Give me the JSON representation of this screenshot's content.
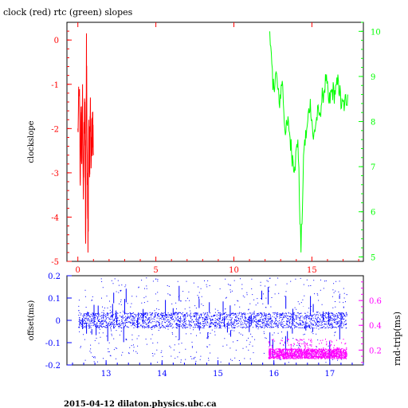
{
  "title": "clock (red) rtc (green) slopes",
  "footer": "2015-04-12  dilaton.physics.ubc.ca",
  "colors": {
    "clock": "#ff0000",
    "rtc": "#00ff00",
    "offset": "#0000ff",
    "rnd_trip": "#ff00ff",
    "frame": "#000000"
  },
  "chart_data": [
    {
      "type": "line",
      "title": "clock (red) rtc (green) slopes",
      "ylabel": "clockslope",
      "xlim": [
        -0.7,
        18.3
      ],
      "ylim": [
        -5,
        0.4
      ],
      "y2lim": [
        4.9,
        10.2
      ],
      "x_ticks": [
        0,
        5,
        10,
        15
      ],
      "y_ticks": [
        0,
        -1,
        -2,
        -3,
        -4,
        -5
      ],
      "y2_ticks": [
        10,
        9,
        8,
        7,
        6,
        5
      ],
      "series": [
        {
          "color": "#ff0000",
          "axis": "left",
          "x": [
            0.0,
            0.1,
            0.15,
            0.2,
            0.25,
            0.3,
            0.35,
            0.4,
            0.45,
            0.5,
            0.55,
            0.6,
            0.65,
            0.7,
            0.75,
            0.8,
            0.85,
            0.9,
            0.95,
            1.0
          ],
          "y": [
            -2.0,
            -1.2,
            -3.2,
            -1.7,
            -2.8,
            -1.0,
            -3.6,
            -2.0,
            -1.4,
            -4.6,
            0.15,
            -2.6,
            -4.8,
            -1.8,
            -3.1,
            -1.3,
            -2.9,
            -2.3,
            -1.9,
            -2.6
          ]
        },
        {
          "color": "#00ff00",
          "axis": "right",
          "x": [
            12.3,
            12.5,
            12.7,
            12.9,
            13.1,
            13.3,
            13.5,
            13.7,
            13.9,
            14.1,
            14.3,
            14.5,
            14.7,
            14.9,
            15.1,
            15.3,
            15.5,
            15.7,
            15.9,
            16.1,
            16.3,
            16.5,
            16.7,
            16.9,
            17.1,
            17.3
          ],
          "y": [
            10.0,
            8.7,
            9.1,
            8.4,
            8.9,
            7.7,
            8.0,
            7.3,
            7.0,
            7.6,
            5.1,
            7.4,
            7.9,
            8.5,
            7.6,
            8.1,
            8.2,
            8.6,
            8.9,
            8.4,
            8.7,
            8.6,
            8.9,
            8.3,
            8.4,
            8.6
          ]
        }
      ]
    },
    {
      "type": "scatter",
      "ylabel": "offset(ms)",
      "y2label": "rnd-trip(ms)",
      "xlim": [
        12.3,
        17.6
      ],
      "ylim": [
        -0.2,
        0.2
      ],
      "y2lim": [
        0.08,
        0.8
      ],
      "x_ticks": [
        13,
        14,
        15,
        16,
        17
      ],
      "y_ticks": [
        0.2,
        0.1,
        0,
        -0.1,
        -0.2
      ],
      "y2_ticks": [
        0.6,
        0.4,
        0.2
      ],
      "series": [
        {
          "color": "#0000ff",
          "axis": "left",
          "x_range": [
            12.5,
            17.3
          ],
          "center": 0.0,
          "band_half_width": 0.035,
          "outlier_min": -0.19,
          "outlier_max": 0.19
        },
        {
          "color": "#ff00ff",
          "axis": "right",
          "x_range": [
            15.9,
            17.3
          ],
          "center": 0.17,
          "band_half_width": 0.04
        }
      ]
    }
  ]
}
